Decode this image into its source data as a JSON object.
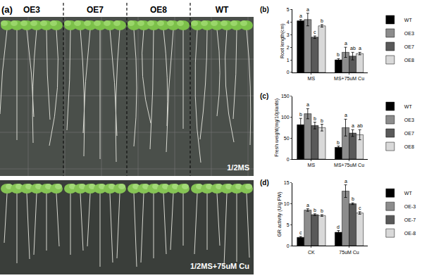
{
  "photo": {
    "panel": "(a)",
    "columns": [
      "OE3",
      "OE7",
      "OE8",
      "WT"
    ],
    "rows": [
      "1/2MS",
      "1/2MS+75uM Cu"
    ]
  },
  "chart_data": [
    {
      "panel": "(b)",
      "type": "bar",
      "y_label": "Root length(cm)",
      "categories": [
        "MS",
        "MS+75uM Cu"
      ],
      "series": [
        {
          "name": "WT",
          "color": "#000000",
          "values": [
            4.1,
            1.0
          ],
          "errors": [
            0.1,
            0.1
          ],
          "letters": [
            "a",
            "b"
          ]
        },
        {
          "name": "OE3",
          "color": "#8c8c8c",
          "values": [
            4.2,
            1.6
          ],
          "errors": [
            0.5,
            0.4
          ],
          "letters": [
            "a",
            "a"
          ]
        },
        {
          "name": "OE7",
          "color": "#595959",
          "values": [
            2.8,
            1.3
          ],
          "errors": [
            0.1,
            0.3
          ],
          "letters": [
            "c",
            "ab"
          ]
        },
        {
          "name": "OE8",
          "color": "#d9d9d9",
          "values": [
            3.7,
            1.5
          ],
          "errors": [
            0.1,
            0.1
          ],
          "letters": [
            "b",
            "a"
          ]
        }
      ],
      "ylim": [
        0,
        5
      ],
      "yticks": [
        0,
        1,
        2,
        3,
        4,
        5
      ],
      "legend": "upper right"
    },
    {
      "panel": "(c)",
      "type": "bar",
      "y_label": "Fresh weight(mg/10plants)",
      "categories": [
        "MS",
        "MS+75uM Cu"
      ],
      "series": [
        {
          "name": "WT",
          "color": "#000000",
          "values": [
            82,
            28
          ],
          "errors": [
            15,
            3
          ],
          "letters": [
            "b",
            "b"
          ]
        },
        {
          "name": "OE3",
          "color": "#8c8c8c",
          "values": [
            108,
            75
          ],
          "errors": [
            12,
            20
          ],
          "letters": [
            "a",
            "a"
          ]
        },
        {
          "name": "OE7",
          "color": "#595959",
          "values": [
            80,
            62
          ],
          "errors": [
            8,
            8
          ],
          "letters": [
            "b",
            "a"
          ]
        },
        {
          "name": "OE8",
          "color": "#d9d9d9",
          "values": [
            75,
            58
          ],
          "errors": [
            8,
            12
          ],
          "letters": [
            "b",
            "ab"
          ]
        }
      ],
      "ylim": [
        0,
        150
      ],
      "yticks": [
        0,
        50,
        100,
        150
      ],
      "legend": "upper right"
    },
    {
      "panel": "(d)",
      "type": "bar",
      "y_label": "GR activity (U/g FW)",
      "categories": [
        "CK",
        "75uM Cu"
      ],
      "series": [
        {
          "name": "WT",
          "color": "#000000",
          "values": [
            2.0,
            3.2
          ],
          "errors": [
            0.2,
            0.4
          ],
          "letters": [
            "c",
            "d"
          ]
        },
        {
          "name": "OE-3",
          "color": "#8c8c8c",
          "values": [
            8.5,
            13.0
          ],
          "errors": [
            0.3,
            1.5
          ],
          "letters": [
            "a",
            "a"
          ]
        },
        {
          "name": "OE-7",
          "color": "#595959",
          "values": [
            7.4,
            10.0
          ],
          "errors": [
            0.2,
            0.2
          ],
          "letters": [
            "b",
            "b"
          ]
        },
        {
          "name": "OE-8",
          "color": "#d9d9d9",
          "values": [
            7.2,
            7.8
          ],
          "errors": [
            0.2,
            0.3
          ],
          "letters": [
            "b",
            "c"
          ]
        }
      ],
      "ylim": [
        0,
        15
      ],
      "yticks": [
        0,
        5,
        10,
        15
      ],
      "legend": "upper right"
    }
  ]
}
